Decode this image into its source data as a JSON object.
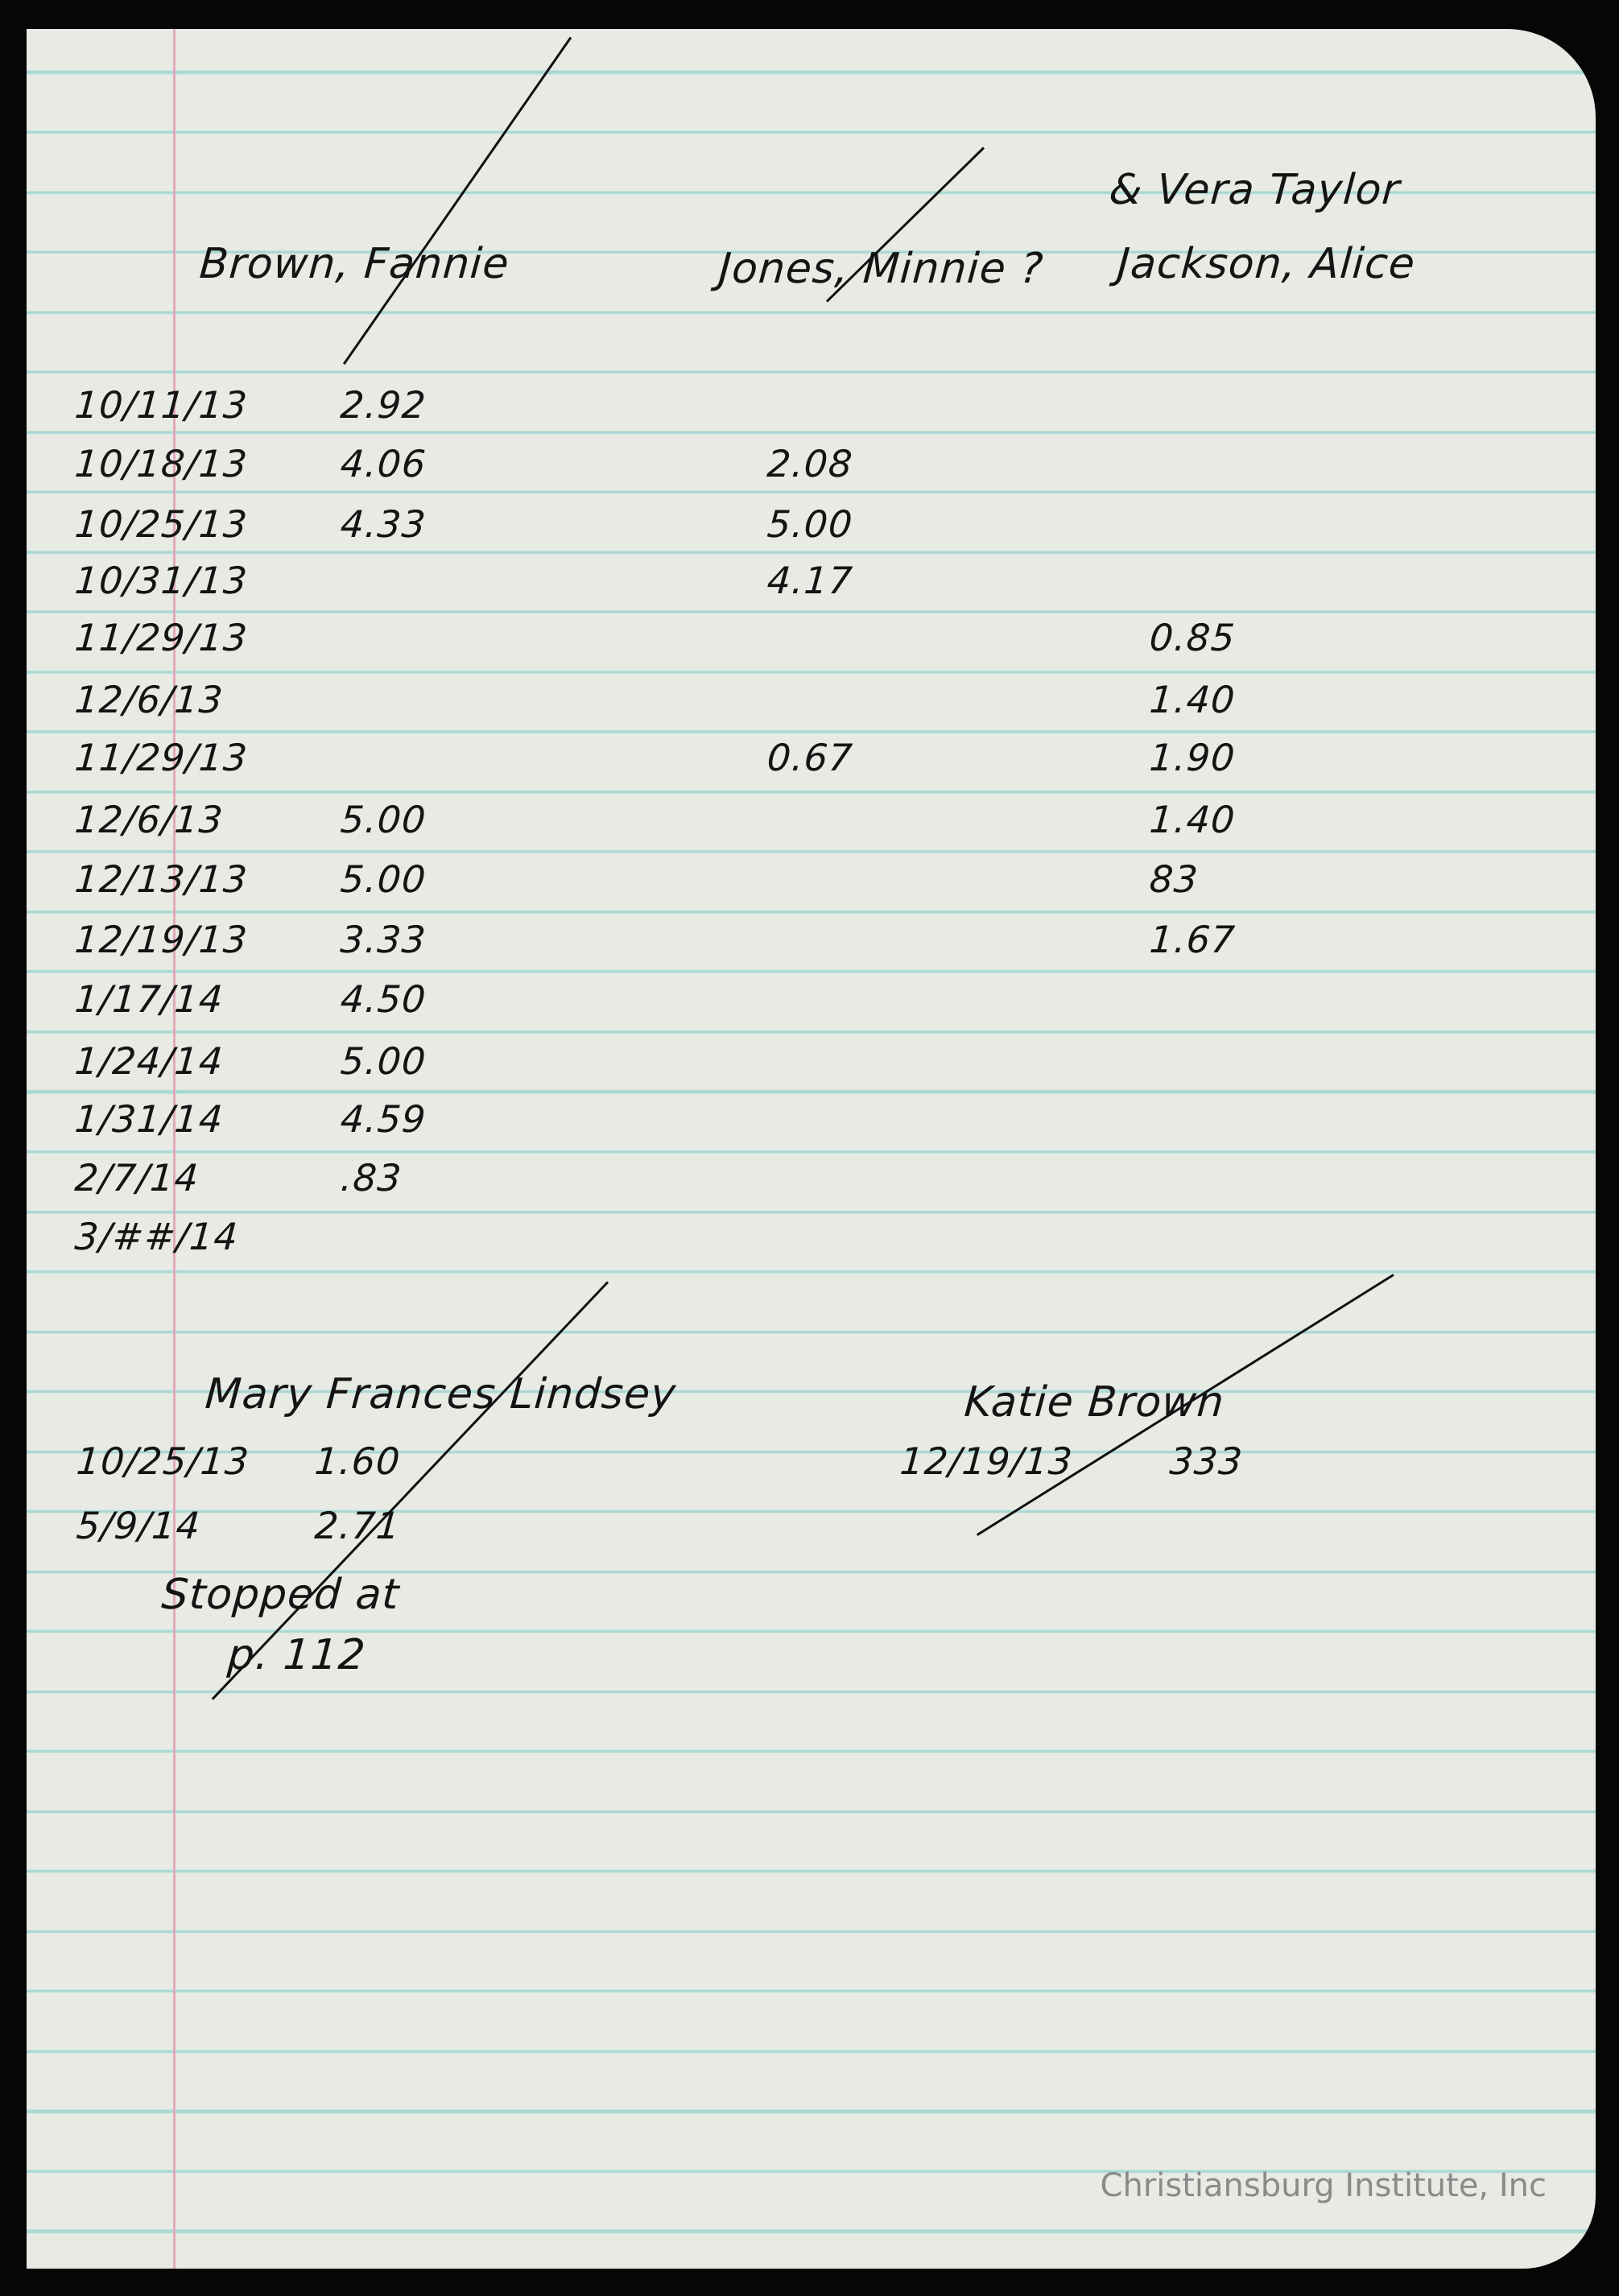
{
  "headers": {
    "fannie": "Brown, Fannie",
    "minnie": "Jones, Minnie ?",
    "vera": "& Vera Taylor",
    "alice": "Jackson, Alice"
  },
  "rows": [
    {
      "date": "10/11/13",
      "fannie": "2.92",
      "minnie": "",
      "alice": ""
    },
    {
      "date": "10/18/13",
      "fannie": "4.06",
      "minnie": "2.08",
      "alice": ""
    },
    {
      "date": "10/25/13",
      "fannie": "4.33",
      "minnie": "5.00",
      "alice": ""
    },
    {
      "date": "10/31/13",
      "fannie": "",
      "minnie": "4.17",
      "alice": ""
    },
    {
      "date": "11/29/13",
      "fannie": "",
      "minnie": "",
      "alice": "0.85"
    },
    {
      "date": "12/6/13",
      "fannie": "",
      "minnie": "",
      "alice": "1.40"
    },
    {
      "date": "11/29/13",
      "fannie": "",
      "minnie": "0.67",
      "alice": "1.90"
    },
    {
      "date": "12/6/13",
      "fannie": "5.00",
      "minnie": "",
      "alice": "1.40"
    },
    {
      "date": "12/13/13",
      "fannie": "5.00",
      "minnie": "",
      "alice": "83"
    },
    {
      "date": "12/19/13",
      "fannie": "3.33",
      "minnie": "",
      "alice": "1.67"
    },
    {
      "date": "1/17/14",
      "fannie": "4.50",
      "minnie": "",
      "alice": ""
    },
    {
      "date": "1/24/14",
      "fannie": "5.00",
      "minnie": "",
      "alice": ""
    },
    {
      "date": "1/31/14",
      "fannie": "4.59",
      "minnie": "",
      "alice": ""
    },
    {
      "date": "2/7/14",
      "fannie": ".83",
      "minnie": "",
      "alice": ""
    },
    {
      "date": "3/##/14",
      "fannie": "",
      "minnie": "",
      "alice": ""
    }
  ],
  "lindsey": {
    "name": "Mary Frances Lindsey",
    "rows": [
      {
        "date": "10/25/13",
        "value": "1.60"
      },
      {
        "date": "5/9/14",
        "value": "2.71"
      }
    ],
    "note_line1": "Stopped at",
    "note_line2": "p. 112"
  },
  "katie": {
    "name": "Katie Brown",
    "date": "12/19/13",
    "value": "333"
  },
  "watermark": "Christiansburg Institute, Inc",
  "colors": {
    "paper": "#e7ebe4",
    "rule_lines": "#a8d9d3",
    "margin_line": "#e3a9bb",
    "ink": "#141414"
  }
}
